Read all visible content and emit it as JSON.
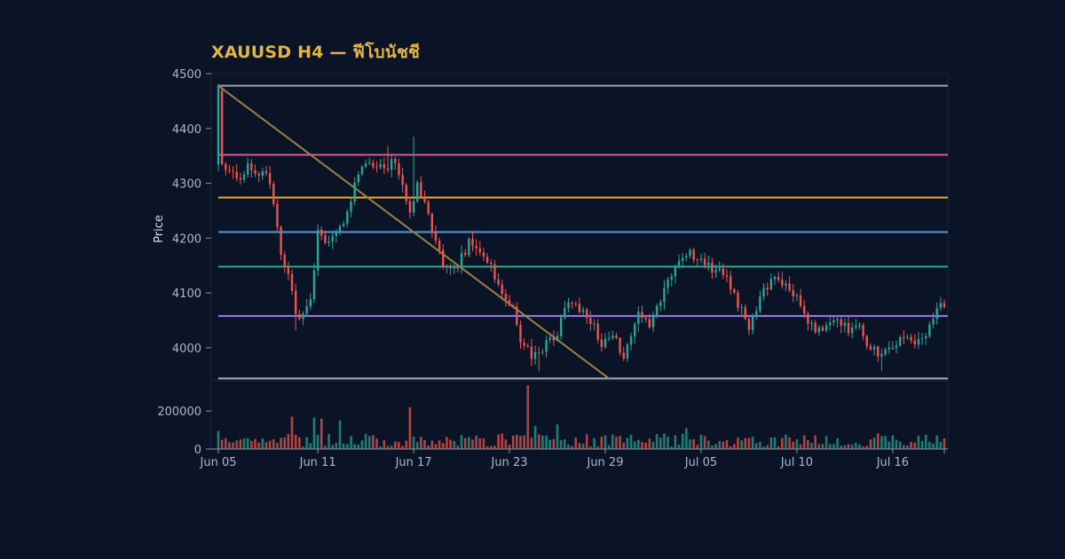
{
  "title": "XAUUSD H4 — ฟีโบนัชชี",
  "chart_data": {
    "type": "candlestick",
    "title": "XAUUSD H4 — ฟีโบนัชชี",
    "ylabel": "Price",
    "ylim": [
      3940,
      4500
    ],
    "yticks": [
      4500,
      4400,
      4300,
      4200,
      4100,
      4000
    ],
    "volume_ylim": [
      0,
      360000
    ],
    "volume_yticks": [
      200000,
      0
    ],
    "volume_tick_labels": [
      "200000",
      "0"
    ],
    "xticks": [
      {
        "label": "Jun 05",
        "index": 0
      },
      {
        "label": "Jun 11",
        "index": 27
      },
      {
        "label": "Jun 17",
        "index": 53
      },
      {
        "label": "Jun 23",
        "index": 79
      },
      {
        "label": "Jun 29",
        "index": 105
      },
      {
        "label": "Jul 05",
        "index": 131
      },
      {
        "label": "Jul 10",
        "index": 157
      },
      {
        "label": "Jul 16",
        "index": 183
      }
    ],
    "fib_levels": [
      {
        "value": 4478,
        "color": "#9ba3ad"
      },
      {
        "value": 4352,
        "color": "#e0569a"
      },
      {
        "value": 4274,
        "color": "#e3ae33"
      },
      {
        "value": 4211,
        "color": "#4d9be6"
      },
      {
        "value": 4148,
        "color": "#21b087"
      },
      {
        "value": 4058,
        "color": "#9a7ee8"
      },
      {
        "value": 3944,
        "color": "#a9b0b8"
      }
    ],
    "trend_line": {
      "from": {
        "index": 0,
        "price": 4478
      },
      "to": {
        "index": 106,
        "price": 3944
      },
      "color": "#9a8240"
    },
    "colors": {
      "up": "#26a69a",
      "down": "#ef5350"
    },
    "anchors": [
      [
        0,
        4470
      ],
      [
        1,
        4335
      ],
      [
        3,
        4320
      ],
      [
        6,
        4300
      ],
      [
        8,
        4330
      ],
      [
        10,
        4320
      ],
      [
        13,
        4325
      ],
      [
        15,
        4260
      ],
      [
        17,
        4170
      ],
      [
        19,
        4140
      ],
      [
        21,
        4060
      ],
      [
        23,
        4055
      ],
      [
        25,
        4080
      ],
      [
        27,
        4210
      ],
      [
        30,
        4195
      ],
      [
        34,
        4225
      ],
      [
        37,
        4300
      ],
      [
        40,
        4340
      ],
      [
        43,
        4335
      ],
      [
        46,
        4330
      ],
      [
        48,
        4345
      ],
      [
        52,
        4240
      ],
      [
        54,
        4305
      ],
      [
        57,
        4240
      ],
      [
        61,
        4150
      ],
      [
        64,
        4140
      ],
      [
        68,
        4190
      ],
      [
        71,
        4175
      ],
      [
        74,
        4145
      ],
      [
        77,
        4105
      ],
      [
        80,
        4070
      ],
      [
        82,
        4010
      ],
      [
        85,
        3985
      ],
      [
        88,
        4000
      ],
      [
        92,
        4030
      ],
      [
        95,
        4080
      ],
      [
        98,
        4070
      ],
      [
        101,
        4050
      ],
      [
        104,
        4010
      ],
      [
        107,
        4030
      ],
      [
        110,
        3980
      ],
      [
        114,
        4070
      ],
      [
        117,
        4040
      ],
      [
        120,
        4085
      ],
      [
        124,
        4150
      ],
      [
        127,
        4175
      ],
      [
        130,
        4165
      ],
      [
        134,
        4145
      ],
      [
        137,
        4140
      ],
      [
        140,
        4095
      ],
      [
        144,
        4040
      ],
      [
        147,
        4090
      ],
      [
        150,
        4125
      ],
      [
        153,
        4115
      ],
      [
        156,
        4100
      ],
      [
        159,
        4060
      ],
      [
        162,
        4025
      ],
      [
        165,
        4040
      ],
      [
        168,
        4055
      ],
      [
        171,
        4030
      ],
      [
        174,
        4045
      ],
      [
        177,
        3995
      ],
      [
        180,
        3990
      ],
      [
        183,
        4000
      ],
      [
        186,
        4020
      ],
      [
        189,
        4005
      ],
      [
        192,
        4030
      ],
      [
        194,
        4060
      ],
      [
        196,
        4080
      ]
    ],
    "spikes": [
      {
        "index": 53,
        "high": 4385
      },
      {
        "index": 46,
        "high": 4368
      },
      {
        "index": 21,
        "low": 4032
      },
      {
        "index": 87,
        "low": 3957
      },
      {
        "index": 180,
        "low": 3958
      }
    ],
    "volume_spikes": [
      {
        "index": 84,
        "value": 335000
      },
      {
        "index": 52,
        "value": 220000
      },
      {
        "index": 20,
        "value": 170000
      },
      {
        "index": 26,
        "value": 165000
      },
      {
        "index": 28,
        "value": 160000
      },
      {
        "index": 33,
        "value": 150000
      },
      {
        "index": 86,
        "value": 120000
      },
      {
        "index": 92,
        "value": 130000
      },
      {
        "index": 127,
        "value": 110000
      }
    ]
  }
}
